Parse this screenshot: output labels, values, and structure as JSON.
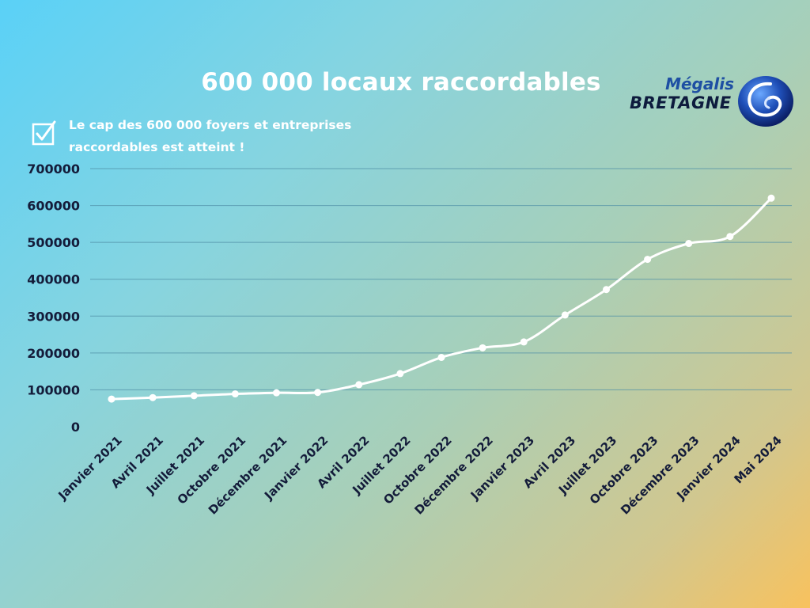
{
  "header": {
    "title": "600 000 locaux raccordables"
  },
  "logo": {
    "line1": "Mégalis",
    "line2": "BRETAGNE",
    "icon": "swirl-globe-icon"
  },
  "note": {
    "icon": "checkbox-icon",
    "line1": "Le cap des 600 000 foyers et entreprises",
    "line2": "raccordables est atteint !"
  },
  "colors": {
    "line": "#ffffff",
    "grid": "#4f8fa6",
    "text_dark": "#141c3a",
    "logo_blue": "#1e4fa3"
  },
  "chart_data": {
    "type": "line",
    "title": "600 000 locaux raccordables",
    "xlabel": "",
    "ylabel": "",
    "categories": [
      "Janvier 2021",
      "Avril 2021",
      "Juillet 2021",
      "Octobre 2021",
      "Décembre 2021",
      "Janvier 2022",
      "Avril 2022",
      "Juillet 2022",
      "Octobre 2022",
      "Décembre 2022",
      "Janvier 2023",
      "Avril 2023",
      "Juillet 2023",
      "Octobre 2023",
      "Décembre 2023",
      "Janvier 2024",
      "Mai 2024"
    ],
    "series": [
      {
        "values": [
          75000,
          79000,
          84000,
          89000,
          92000,
          93000,
          114000,
          144000,
          188000,
          214000,
          230000,
          303000,
          372000,
          454000,
          497000,
          516000,
          620000
        ]
      }
    ],
    "ylim": [
      0,
      700000
    ],
    "yticks": [
      0,
      100000,
      200000,
      300000,
      400000,
      500000,
      600000,
      700000
    ],
    "ytick_labels": [
      "0",
      "100000",
      "200000",
      "300000",
      "400000",
      "500000",
      "600000",
      "700000"
    ],
    "grid": true,
    "smooth": true,
    "markers": true
  }
}
